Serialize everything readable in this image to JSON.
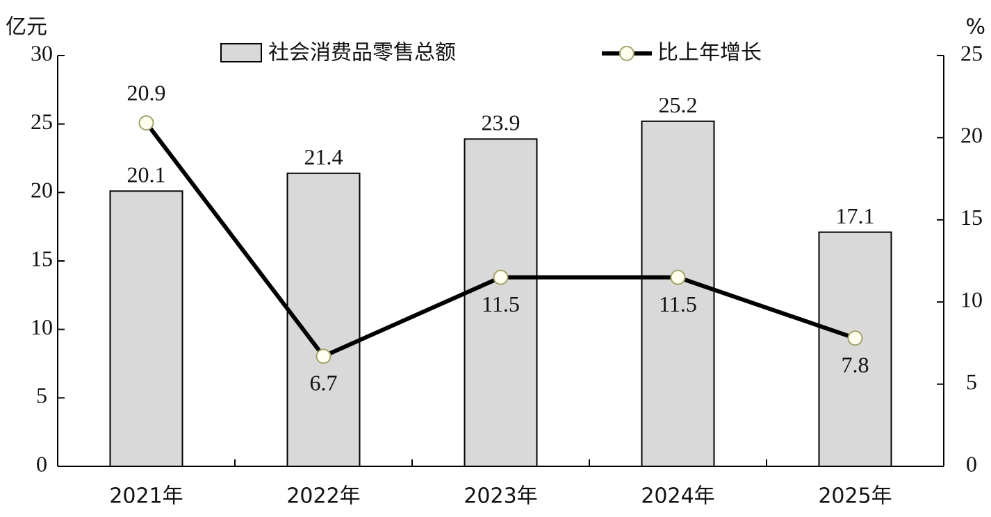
{
  "chart_data": {
    "type": "bar",
    "categories": [
      "2021年",
      "2022年",
      "2023年",
      "2024年",
      "2025年"
    ],
    "y_label": "亿元",
    "y2_label": "%",
    "series": [
      {
        "name": "社会消费品零售总额",
        "type": "bar",
        "color": "#d9d9d9",
        "values": [
          20.1,
          21.4,
          23.9,
          25.2,
          17.1
        ]
      },
      {
        "name": "比上年增长",
        "type": "line",
        "axis": "y2",
        "color": "#000000",
        "values": [
          20.9,
          6.7,
          11.5,
          11.5,
          7.8
        ]
      }
    ],
    "ylim": [
      0,
      30
    ],
    "yticks": [
      0,
      5,
      10,
      15,
      20,
      25,
      30
    ],
    "y2lim": [
      0,
      25
    ],
    "y2ticks": [
      0,
      5,
      10,
      15,
      20,
      25
    ],
    "grid": false,
    "legend": "top"
  }
}
